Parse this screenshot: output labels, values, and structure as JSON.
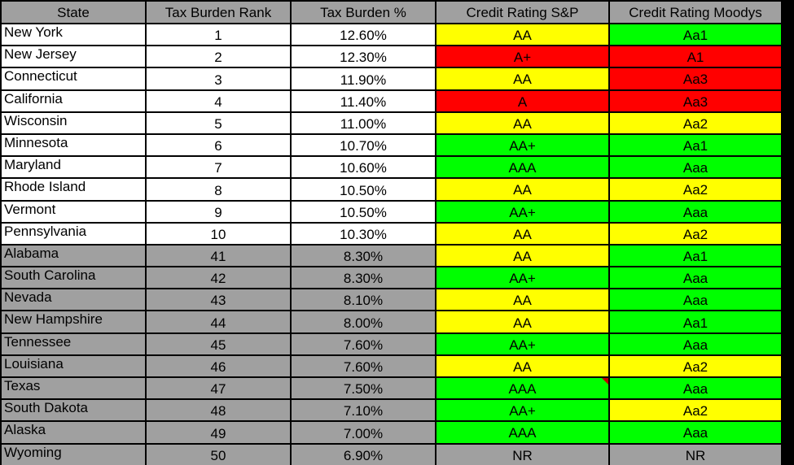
{
  "headers": [
    "State",
    "Tax Burden Rank",
    "Tax Burden %",
    "Credit Rating S&P",
    "Credit Rating Moodys"
  ],
  "colors": {
    "header": "#a0a0a0",
    "top_group": "#ffffff",
    "bottom_group": "#a0a0a0",
    "AA": "#ffff00",
    "Aa2": "#ffff00",
    "green": "#00ff00",
    "red": "#ff0000",
    "NR": "#a0a0a0"
  },
  "rows": [
    {
      "state": "New York",
      "rank": "1",
      "pct": "12.60%",
      "sp": "AA",
      "moodys": "Aa1",
      "sp_color": "#ffff00",
      "moodys_color": "#00ff00",
      "group": "top"
    },
    {
      "state": "New Jersey",
      "rank": "2",
      "pct": "12.30%",
      "sp": "A+",
      "moodys": "A1",
      "sp_color": "#ff0000",
      "moodys_color": "#ff0000",
      "group": "top"
    },
    {
      "state": "Connecticut",
      "rank": "3",
      "pct": "11.90%",
      "sp": "AA",
      "moodys": "Aa3",
      "sp_color": "#ffff00",
      "moodys_color": "#ff0000",
      "group": "top"
    },
    {
      "state": "California",
      "rank": "4",
      "pct": "11.40%",
      "sp": "A",
      "moodys": "Aa3",
      "sp_color": "#ff0000",
      "moodys_color": "#ff0000",
      "group": "top"
    },
    {
      "state": "Wisconsin",
      "rank": "5",
      "pct": "11.00%",
      "sp": "AA",
      "moodys": "Aa2",
      "sp_color": "#ffff00",
      "moodys_color": "#ffff00",
      "group": "top"
    },
    {
      "state": "Minnesota",
      "rank": "6",
      "pct": "10.70%",
      "sp": "AA+",
      "moodys": "Aa1",
      "sp_color": "#00ff00",
      "moodys_color": "#00ff00",
      "group": "top"
    },
    {
      "state": "Maryland",
      "rank": "7",
      "pct": "10.60%",
      "sp": "AAA",
      "moodys": "Aaa",
      "sp_color": "#00ff00",
      "moodys_color": "#00ff00",
      "group": "top"
    },
    {
      "state": "Rhode Island",
      "rank": "8",
      "pct": "10.50%",
      "sp": "AA",
      "moodys": "Aa2",
      "sp_color": "#ffff00",
      "moodys_color": "#ffff00",
      "group": "top"
    },
    {
      "state": "Vermont",
      "rank": "9",
      "pct": "10.50%",
      "sp": "AA+",
      "moodys": "Aaa",
      "sp_color": "#00ff00",
      "moodys_color": "#00ff00",
      "group": "top"
    },
    {
      "state": "Pennsylvania",
      "rank": "10",
      "pct": "10.30%",
      "sp": "AA",
      "moodys": "Aa2",
      "sp_color": "#ffff00",
      "moodys_color": "#ffff00",
      "group": "top"
    },
    {
      "state": "Alabama",
      "rank": "41",
      "pct": "8.30%",
      "sp": "AA",
      "moodys": "Aa1",
      "sp_color": "#ffff00",
      "moodys_color": "#00ff00",
      "group": "bottom"
    },
    {
      "state": "South Carolina",
      "rank": "42",
      "pct": "8.30%",
      "sp": "AA+",
      "moodys": "Aaa",
      "sp_color": "#00ff00",
      "moodys_color": "#00ff00",
      "group": "bottom"
    },
    {
      "state": "Nevada",
      "rank": "43",
      "pct": "8.10%",
      "sp": "AA",
      "moodys": "Aaa",
      "sp_color": "#ffff00",
      "moodys_color": "#00ff00",
      "group": "bottom"
    },
    {
      "state": "New Hampshire",
      "rank": "44",
      "pct": "8.00%",
      "sp": "AA",
      "moodys": "Aa1",
      "sp_color": "#ffff00",
      "moodys_color": "#00ff00",
      "group": "bottom"
    },
    {
      "state": "Tennessee",
      "rank": "45",
      "pct": "7.60%",
      "sp": "AA+",
      "moodys": "Aaa",
      "sp_color": "#00ff00",
      "moodys_color": "#00ff00",
      "group": "bottom"
    },
    {
      "state": "Louisiana",
      "rank": "46",
      "pct": "7.60%",
      "sp": "AA",
      "moodys": "Aa2",
      "sp_color": "#ffff00",
      "moodys_color": "#ffff00",
      "group": "bottom"
    },
    {
      "state": "Texas",
      "rank": "47",
      "pct": "7.50%",
      "sp": "AAA",
      "moodys": "Aaa",
      "sp_color": "#00ff00",
      "moodys_color": "#00ff00",
      "group": "bottom",
      "sp_comment": true
    },
    {
      "state": "South Dakota",
      "rank": "48",
      "pct": "7.10%",
      "sp": "AA+",
      "moodys": "Aa2",
      "sp_color": "#00ff00",
      "moodys_color": "#ffff00",
      "group": "bottom"
    },
    {
      "state": "Alaska",
      "rank": "49",
      "pct": "7.00%",
      "sp": "AAA",
      "moodys": "Aaa",
      "sp_color": "#00ff00",
      "moodys_color": "#00ff00",
      "group": "bottom"
    },
    {
      "state": "Wyoming",
      "rank": "50",
      "pct": "6.90%",
      "sp": "NR",
      "moodys": "NR",
      "sp_color": "#a0a0a0",
      "moodys_color": "#a0a0a0",
      "group": "bottom"
    }
  ]
}
